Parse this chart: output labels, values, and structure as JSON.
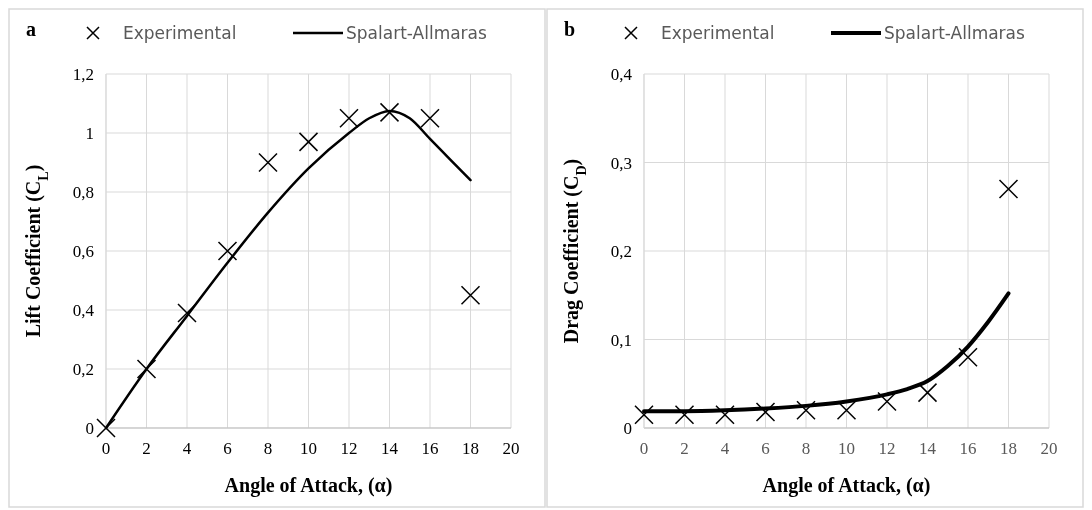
{
  "chart_data": [
    {
      "type": "scatter",
      "title": "a",
      "xlabel": "Angle of Attack, (α)",
      "ylabel": "Lift Coefficient (C$_{L}$)",
      "xlim": [
        0,
        20
      ],
      "xticks": [
        0,
        2,
        4,
        6,
        8,
        10,
        12,
        14,
        16,
        18,
        20
      ],
      "ylim": [
        0,
        1.2
      ],
      "yticks": [
        {
          "value": 0,
          "label": "0"
        },
        {
          "value": 0.2,
          "label": "0,2"
        },
        {
          "value": 0.4,
          "label": "0,4"
        },
        {
          "value": 0.6,
          "label": "0,6"
        },
        {
          "value": 0.8,
          "label": "0,8"
        },
        1,
        {
          "value": 1.2,
          "label": "1,2"
        }
      ],
      "grid": true,
      "legend": "top",
      "series": [
        {
          "name": "Experimental",
          "type": "scatter",
          "marker": "cross",
          "color": "#000000",
          "x": [
            0,
            2,
            4,
            6,
            8,
            10,
            12,
            14,
            16,
            18
          ],
          "values": [
            0,
            0.2,
            0.39,
            0.6,
            0.9,
            0.97,
            1.05,
            1.07,
            1.05,
            0.45
          ]
        },
        {
          "name": "Spalart-Allmaras",
          "type": "line",
          "color": "#000000",
          "x": [
            0,
            2,
            4,
            6,
            8,
            10,
            12,
            13,
            14,
            15,
            16,
            17,
            18
          ],
          "values": [
            0,
            0.2,
            0.38,
            0.56,
            0.73,
            0.88,
            1.0,
            1.05,
            1.075,
            1.05,
            0.98,
            0.91,
            0.84
          ]
        }
      ]
    },
    {
      "type": "scatter",
      "title": "b",
      "xlabel": "Angle of Attack, (α)",
      "ylabel": "Drag Coefficient (C$_{D}$)",
      "xlim": [
        0,
        20
      ],
      "xticks": [
        0,
        2,
        4,
        6,
        8,
        10,
        12,
        14,
        16,
        18,
        20
      ],
      "ylim": [
        0,
        0.4
      ],
      "yticks": [
        {
          "value": 0,
          "label": "0"
        },
        {
          "value": 0.1,
          "label": "0,1"
        },
        {
          "value": 0.2,
          "label": "0,2"
        },
        {
          "value": 0.3,
          "label": "0,3"
        },
        {
          "value": 0.4,
          "label": "0,4"
        }
      ],
      "grid": true,
      "legend": "top",
      "series": [
        {
          "name": "Experimental",
          "type": "scatter",
          "marker": "cross",
          "color": "#000000",
          "x": [
            0,
            2,
            4,
            6,
            8,
            10,
            12,
            14,
            16,
            18
          ],
          "values": [
            0.015,
            0.015,
            0.015,
            0.018,
            0.02,
            0.02,
            0.03,
            0.04,
            0.08,
            0.27
          ]
        },
        {
          "name": "Spalart-Allmaras",
          "type": "line",
          "color": "#000000",
          "x": [
            0,
            2,
            4,
            6,
            8,
            10,
            12,
            13,
            14,
            15,
            16,
            17,
            18
          ],
          "values": [
            0.019,
            0.019,
            0.02,
            0.022,
            0.025,
            0.03,
            0.038,
            0.044,
            0.053,
            0.07,
            0.092,
            0.12,
            0.152
          ]
        }
      ]
    }
  ]
}
